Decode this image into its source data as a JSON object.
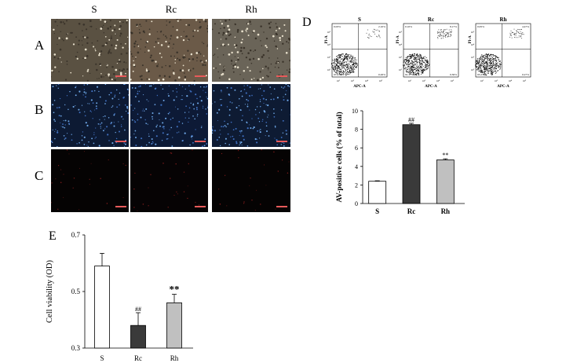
{
  "columns": [
    "S",
    "Rc",
    "Rh"
  ],
  "rows": [
    "A",
    "B",
    "C"
  ],
  "panels": {
    "D": "D",
    "E": "E"
  },
  "flow": {
    "plots": [
      {
        "title": "S",
        "quadrants": {
          "ul": "0.03%",
          "ur": "2.10%",
          "ll": "97.61%",
          "lr": "0.26%"
        }
      },
      {
        "title": "Rc",
        "quadrants": {
          "ul": "0.10%",
          "ur": "8.17%",
          "ll": "91.37%",
          "lr": "0.36%"
        }
      },
      {
        "title": "Rh",
        "quadrants": {
          "ul": "0.05%",
          "ur": "4.47%",
          "ll": "95.21%",
          "lr": "0.27%"
        }
      }
    ],
    "ylabel": "PI-A",
    "xlabel": "APC-A",
    "ticks": [
      "10²",
      "10³",
      "10⁴",
      "10⁵"
    ]
  },
  "chart_data": [
    {
      "type": "bar",
      "panel": "D",
      "categories": [
        "S",
        "Rc",
        "Rh"
      ],
      "values": [
        2.4,
        8.5,
        4.7
      ],
      "errors": [
        0.05,
        0.15,
        0.12
      ],
      "fills": [
        "#ffffff",
        "#3a3a3a",
        "#c0c0c0"
      ],
      "ylabel": "AV-positive cells (% of total)",
      "ylim": [
        0,
        10
      ],
      "yticks": [
        0,
        2,
        4,
        6,
        8,
        10
      ],
      "annotations": [
        "",
        "##",
        "**"
      ],
      "title": ""
    },
    {
      "type": "bar",
      "panel": "E",
      "categories": [
        "S",
        "Rc",
        "Rh"
      ],
      "values": [
        0.59,
        0.38,
        0.46
      ],
      "errors": [
        0.045,
        0.045,
        0.03
      ],
      "fills": [
        "#ffffff",
        "#3a3a3a",
        "#c0c0c0"
      ],
      "ylabel": "Cell viability (OD)",
      "ylim": [
        0.3,
        0.7
      ],
      "yticks": [
        "0.3",
        "0.5",
        "0.7"
      ],
      "annotations": [
        "",
        "##",
        "**"
      ],
      "title": ""
    }
  ]
}
